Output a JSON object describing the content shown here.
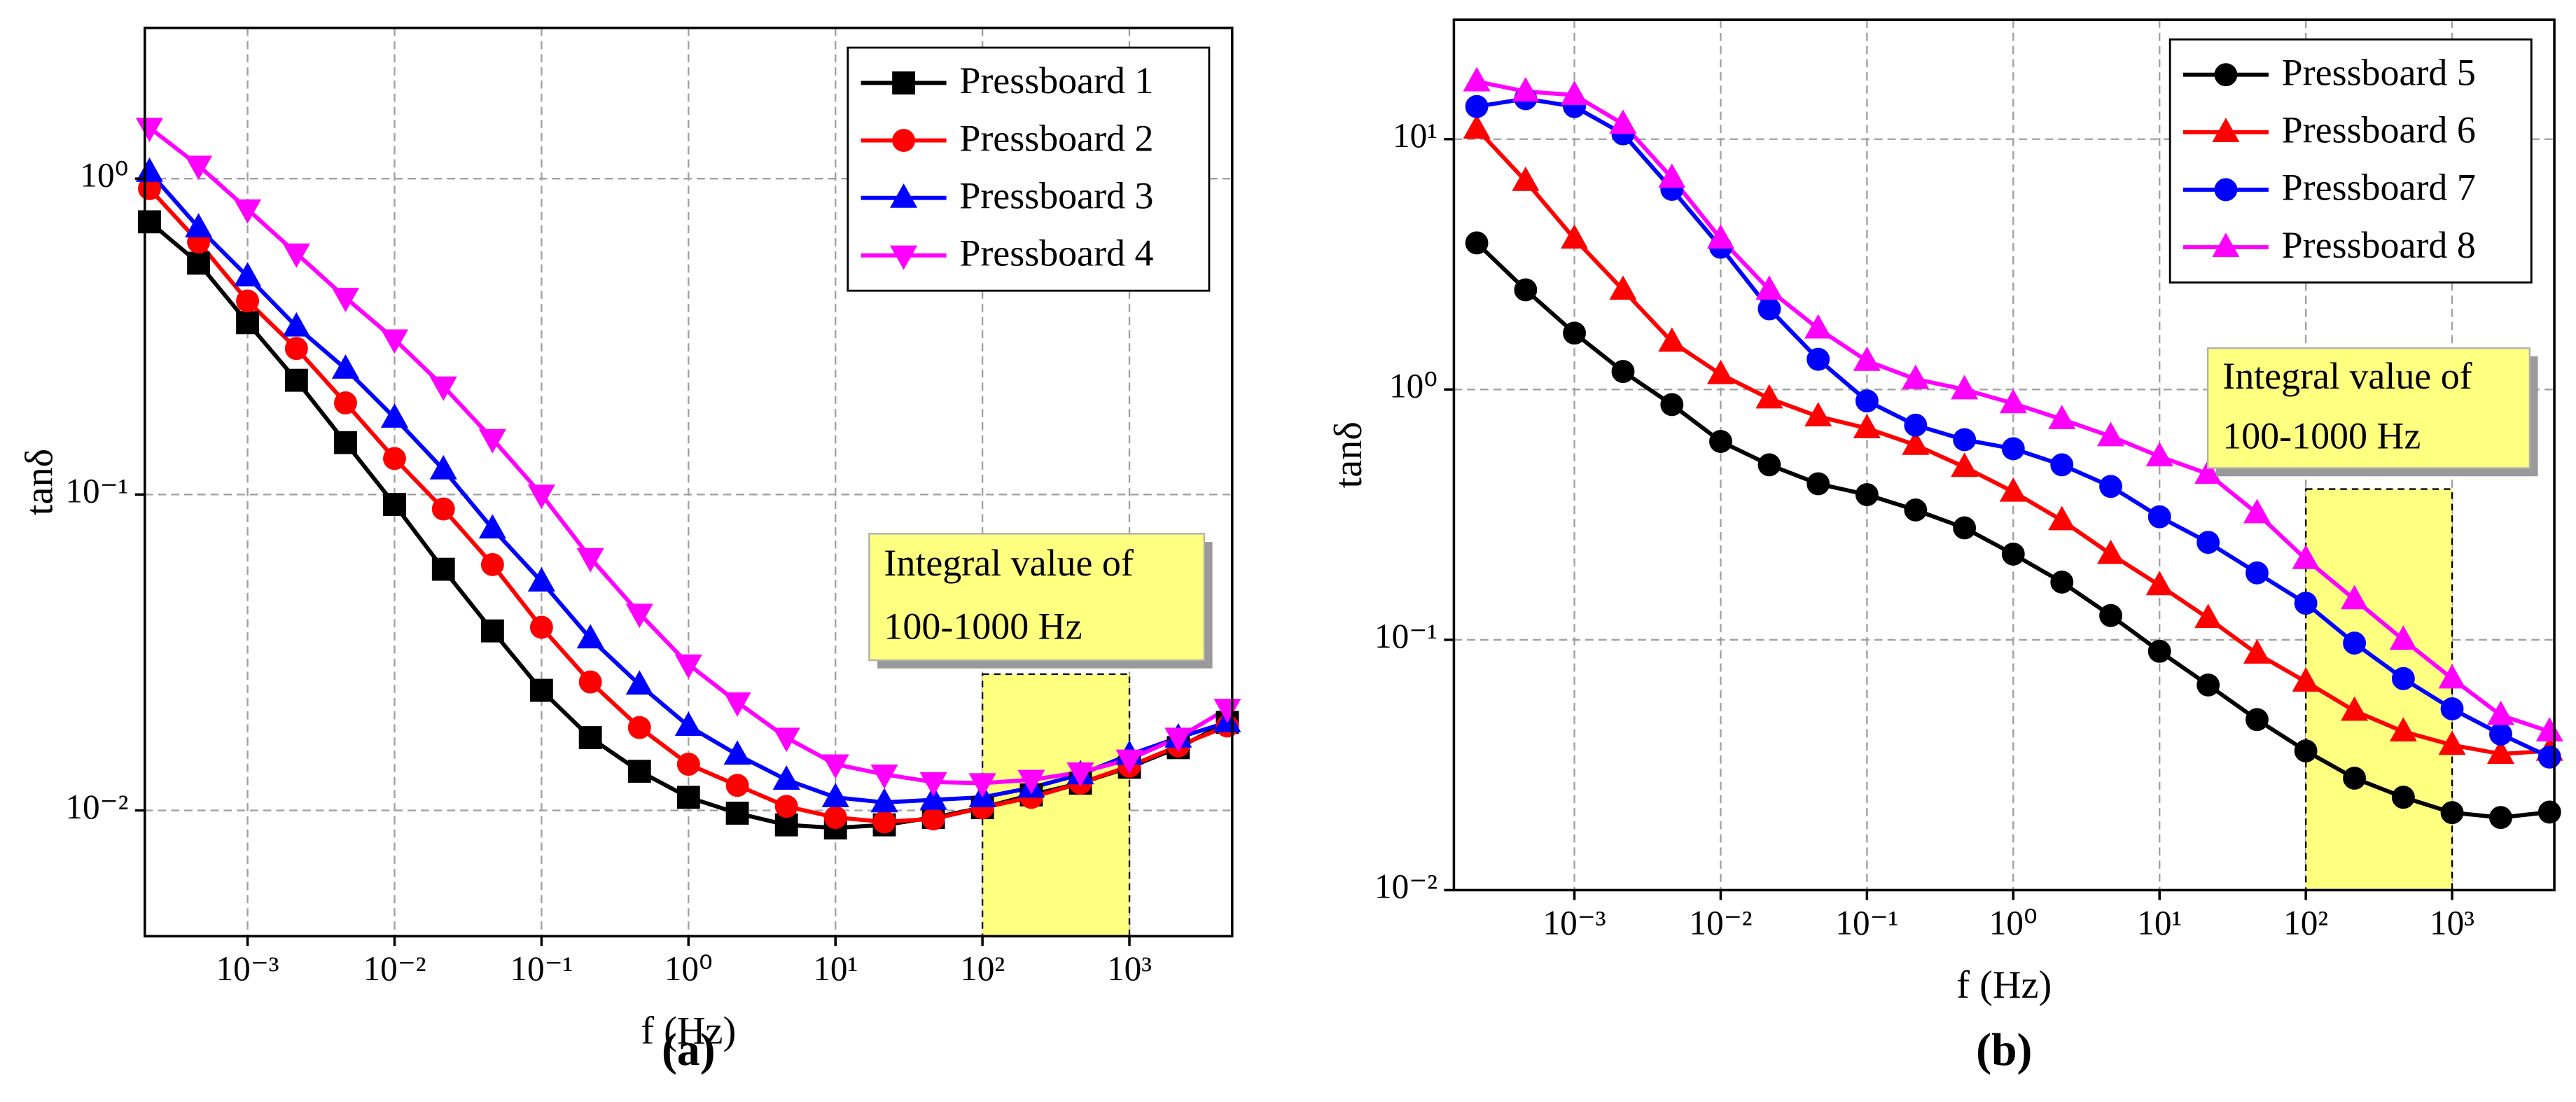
{
  "chart_data": [
    {
      "type": "line",
      "panel_label": "(a)",
      "xlabel": "f (Hz)",
      "ylabel": "tanδ",
      "log_x": true,
      "log_y": true,
      "grid": true,
      "legend": "upper right",
      "xlim": [
        0.0002,
        5000
      ],
      "ylim": [
        0.004,
        3
      ],
      "xticks": [
        {
          "value": 0.001,
          "label": "10⁻³"
        },
        {
          "value": 0.01,
          "label": "10⁻²"
        },
        {
          "value": 0.1,
          "label": "10⁻¹"
        },
        {
          "value": 1,
          "label": "10⁰"
        },
        {
          "value": 10,
          "label": "10¹"
        },
        {
          "value": 100,
          "label": "10²"
        },
        {
          "value": 1000,
          "label": "10³"
        }
      ],
      "yticks": [
        {
          "value": 0.01,
          "label": "10⁻²"
        },
        {
          "value": 0.1,
          "label": "10⁻¹"
        },
        {
          "value": 1,
          "label": "10⁰"
        }
      ],
      "annotation": [
        "Integral value of",
        "100-1000 Hz"
      ],
      "highlight": {
        "x": [
          100,
          1000
        ],
        "y_top": 0.027,
        "color": "#ffff80"
      },
      "x": [
        0.000215,
        0.000464,
        0.001,
        0.00215,
        0.00464,
        0.01,
        0.0215,
        0.0464,
        0.1,
        0.215,
        0.464,
        1,
        2.15,
        4.64,
        10,
        21.5,
        46.4,
        100,
        215,
        464,
        1000,
        2150,
        4640
      ],
      "series": [
        {
          "name": "Pressboard 1",
          "color": "#000000",
          "marker": "square",
          "values": [
            0.73,
            0.54,
            0.35,
            0.23,
            0.146,
            0.093,
            0.058,
            0.037,
            0.024,
            0.017,
            0.0133,
            0.011,
            0.0098,
            0.009,
            0.0088,
            0.009,
            0.0095,
            0.0102,
            0.0112,
            0.0122,
            0.0137,
            0.0158,
            0.019
          ]
        },
        {
          "name": "Pressboard 2",
          "color": "#ff0000",
          "marker": "circle",
          "values": [
            0.93,
            0.63,
            0.41,
            0.29,
            0.195,
            0.13,
            0.09,
            0.06,
            0.038,
            0.0255,
            0.0183,
            0.014,
            0.012,
            0.0103,
            0.0095,
            0.0092,
            0.0094,
            0.0102,
            0.011,
            0.0122,
            0.0138,
            0.016,
            0.0185
          ]
        },
        {
          "name": "Pressboard 3",
          "color": "#0000ff",
          "marker": "triangle-up",
          "values": [
            1.05,
            0.7,
            0.49,
            0.34,
            0.25,
            0.175,
            0.12,
            0.078,
            0.053,
            0.035,
            0.025,
            0.0185,
            0.015,
            0.0125,
            0.011,
            0.0106,
            0.0108,
            0.011,
            0.0118,
            0.013,
            0.015,
            0.017,
            0.019
          ]
        },
        {
          "name": "Pressboard 4",
          "color": "#ff00ff",
          "marker": "triangle-down",
          "values": [
            1.45,
            1.1,
            0.8,
            0.58,
            0.42,
            0.31,
            0.22,
            0.15,
            0.1,
            0.063,
            0.042,
            0.029,
            0.022,
            0.017,
            0.014,
            0.013,
            0.0123,
            0.0122,
            0.0125,
            0.0132,
            0.0145,
            0.017,
            0.021
          ]
        }
      ]
    },
    {
      "type": "line",
      "panel_label": "(b)",
      "xlabel": "f (Hz)",
      "ylabel": "tanδ",
      "log_x": true,
      "log_y": true,
      "grid": true,
      "legend": "upper right",
      "xlim": [
        0.00015,
        5000
      ],
      "ylim": [
        0.01,
        30
      ],
      "xticks": [
        {
          "value": 0.001,
          "label": "10⁻³"
        },
        {
          "value": 0.01,
          "label": "10⁻²"
        },
        {
          "value": 0.1,
          "label": "10⁻¹"
        },
        {
          "value": 1,
          "label": "10⁰"
        },
        {
          "value": 10,
          "label": "10¹"
        },
        {
          "value": 100,
          "label": "10²"
        },
        {
          "value": 1000,
          "label": "10³"
        }
      ],
      "yticks": [
        {
          "value": 0.01,
          "label": "10⁻²"
        },
        {
          "value": 0.1,
          "label": "10⁻¹"
        },
        {
          "value": 1,
          "label": "10⁰"
        },
        {
          "value": 10,
          "label": "10¹"
        }
      ],
      "annotation": [
        "Integral value of",
        "100-1000 Hz"
      ],
      "highlight": {
        "x": [
          100,
          1000
        ],
        "y_top": 0.4,
        "color": "#ffff80"
      },
      "x": [
        0.000215,
        0.000464,
        0.001,
        0.00215,
        0.00464,
        0.01,
        0.0215,
        0.0464,
        0.1,
        0.215,
        0.464,
        1,
        2.15,
        4.64,
        10,
        21.5,
        46.4,
        100,
        215,
        464,
        1000,
        2150,
        4640
      ],
      "series": [
        {
          "name": "Pressboard 5",
          "color": "#000000",
          "marker": "circle",
          "values": [
            3.85,
            2.5,
            1.68,
            1.18,
            0.87,
            0.62,
            0.5,
            0.42,
            0.38,
            0.33,
            0.28,
            0.22,
            0.17,
            0.125,
            0.09,
            0.066,
            0.048,
            0.036,
            0.028,
            0.0235,
            0.0204,
            0.0195,
            0.0205
          ]
        },
        {
          "name": "Pressboard 6",
          "color": "#ff0000",
          "marker": "triangle-up",
          "values": [
            11,
            6.8,
            4,
            2.5,
            1.55,
            1.15,
            0.92,
            0.78,
            0.7,
            0.6,
            0.49,
            0.39,
            0.3,
            0.22,
            0.165,
            0.122,
            0.088,
            0.068,
            0.052,
            0.043,
            0.038,
            0.035,
            0.036
          ]
        },
        {
          "name": "Pressboard 7",
          "color": "#0000ff",
          "marker": "circle",
          "values": [
            13.5,
            14.5,
            13.5,
            10.5,
            6.3,
            3.7,
            2.1,
            1.32,
            0.9,
            0.72,
            0.63,
            0.58,
            0.5,
            0.41,
            0.31,
            0.245,
            0.185,
            0.14,
            0.097,
            0.07,
            0.053,
            0.042,
            0.034
          ]
        },
        {
          "name": "Pressboard 8",
          "color": "#ff00ff",
          "marker": "triangle-up",
          "values": [
            17,
            15.5,
            15,
            11.5,
            7,
            4,
            2.5,
            1.75,
            1.3,
            1.1,
            1.0,
            0.88,
            0.76,
            0.65,
            0.54,
            0.46,
            0.32,
            0.21,
            0.145,
            0.1,
            0.07,
            0.05,
            0.043
          ]
        }
      ]
    }
  ]
}
